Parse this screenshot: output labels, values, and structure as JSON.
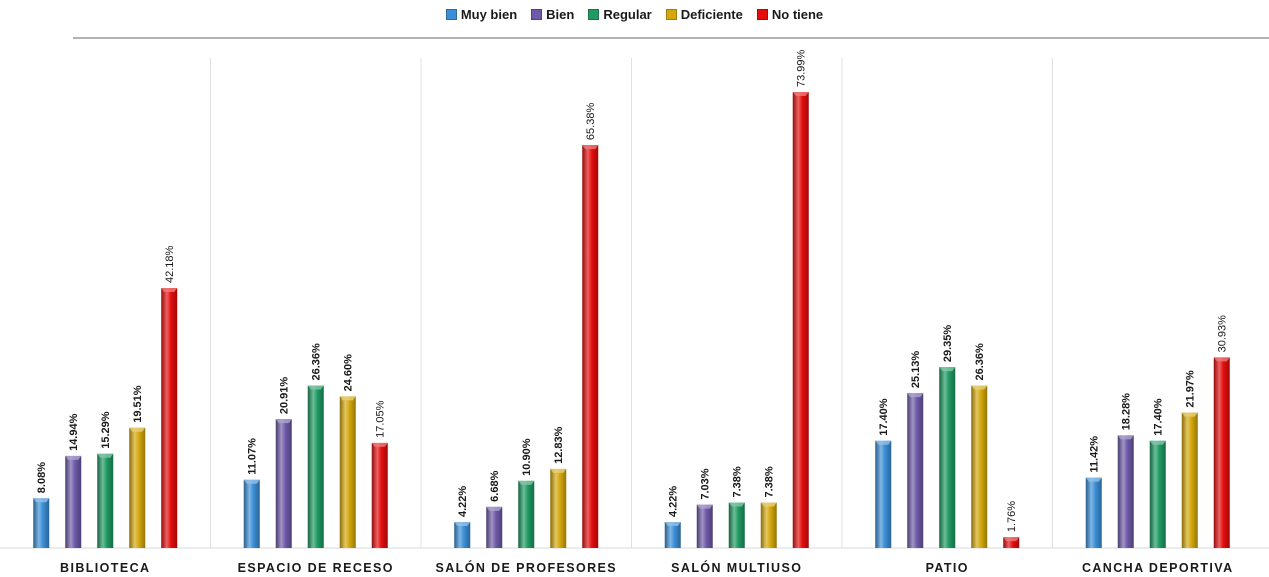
{
  "chart_data": {
    "type": "bar",
    "categories": [
      "BIBLIOTECA",
      "ESPACIO DE RECESO",
      "SALÓN DE PROFESORES",
      "SALÓN MULTIUSO",
      "PATIO",
      "CANCHA DEPORTIVA"
    ],
    "series": [
      {
        "name": "Muy bien",
        "color": "#3c8fd6",
        "values": [
          8.08,
          11.07,
          4.22,
          4.22,
          17.4,
          11.42
        ],
        "labels": [
          "8.08%",
          "11.07%",
          "4.22%",
          "4.22%",
          "17.40%",
          "11.42%"
        ]
      },
      {
        "name": "Bien",
        "color": "#6e5aa8",
        "values": [
          14.94,
          20.91,
          6.68,
          7.03,
          25.13,
          18.28
        ],
        "labels": [
          "14.94%",
          "20.91%",
          "6.68%",
          "7.03%",
          "25.13%",
          "18.28%"
        ]
      },
      {
        "name": "Regular",
        "color": "#1f9a63",
        "values": [
          15.29,
          26.36,
          10.9,
          7.38,
          29.35,
          17.4
        ],
        "labels": [
          "15.29%",
          "26.36%",
          "10.90%",
          "7.38%",
          "29.35%",
          "17.40%"
        ]
      },
      {
        "name": "Deficiente",
        "color": "#d4a80c",
        "values": [
          19.51,
          24.6,
          12.83,
          7.38,
          26.36,
          21.97
        ],
        "labels": [
          "19.51%",
          "24.60%",
          "12.83%",
          "7.38%",
          "26.36%",
          "21.97%"
        ]
      },
      {
        "name": "No tiene",
        "color": "#e40e0e",
        "values": [
          42.18,
          17.05,
          65.38,
          73.99,
          1.76,
          30.93
        ],
        "labels": [
          "42.18%",
          "17.05%",
          "65.38%",
          "73.99%",
          "1.76%",
          "30.93%"
        ]
      }
    ],
    "ylim": [
      0,
      80
    ],
    "legend_position": "top-center",
    "grid": false
  }
}
